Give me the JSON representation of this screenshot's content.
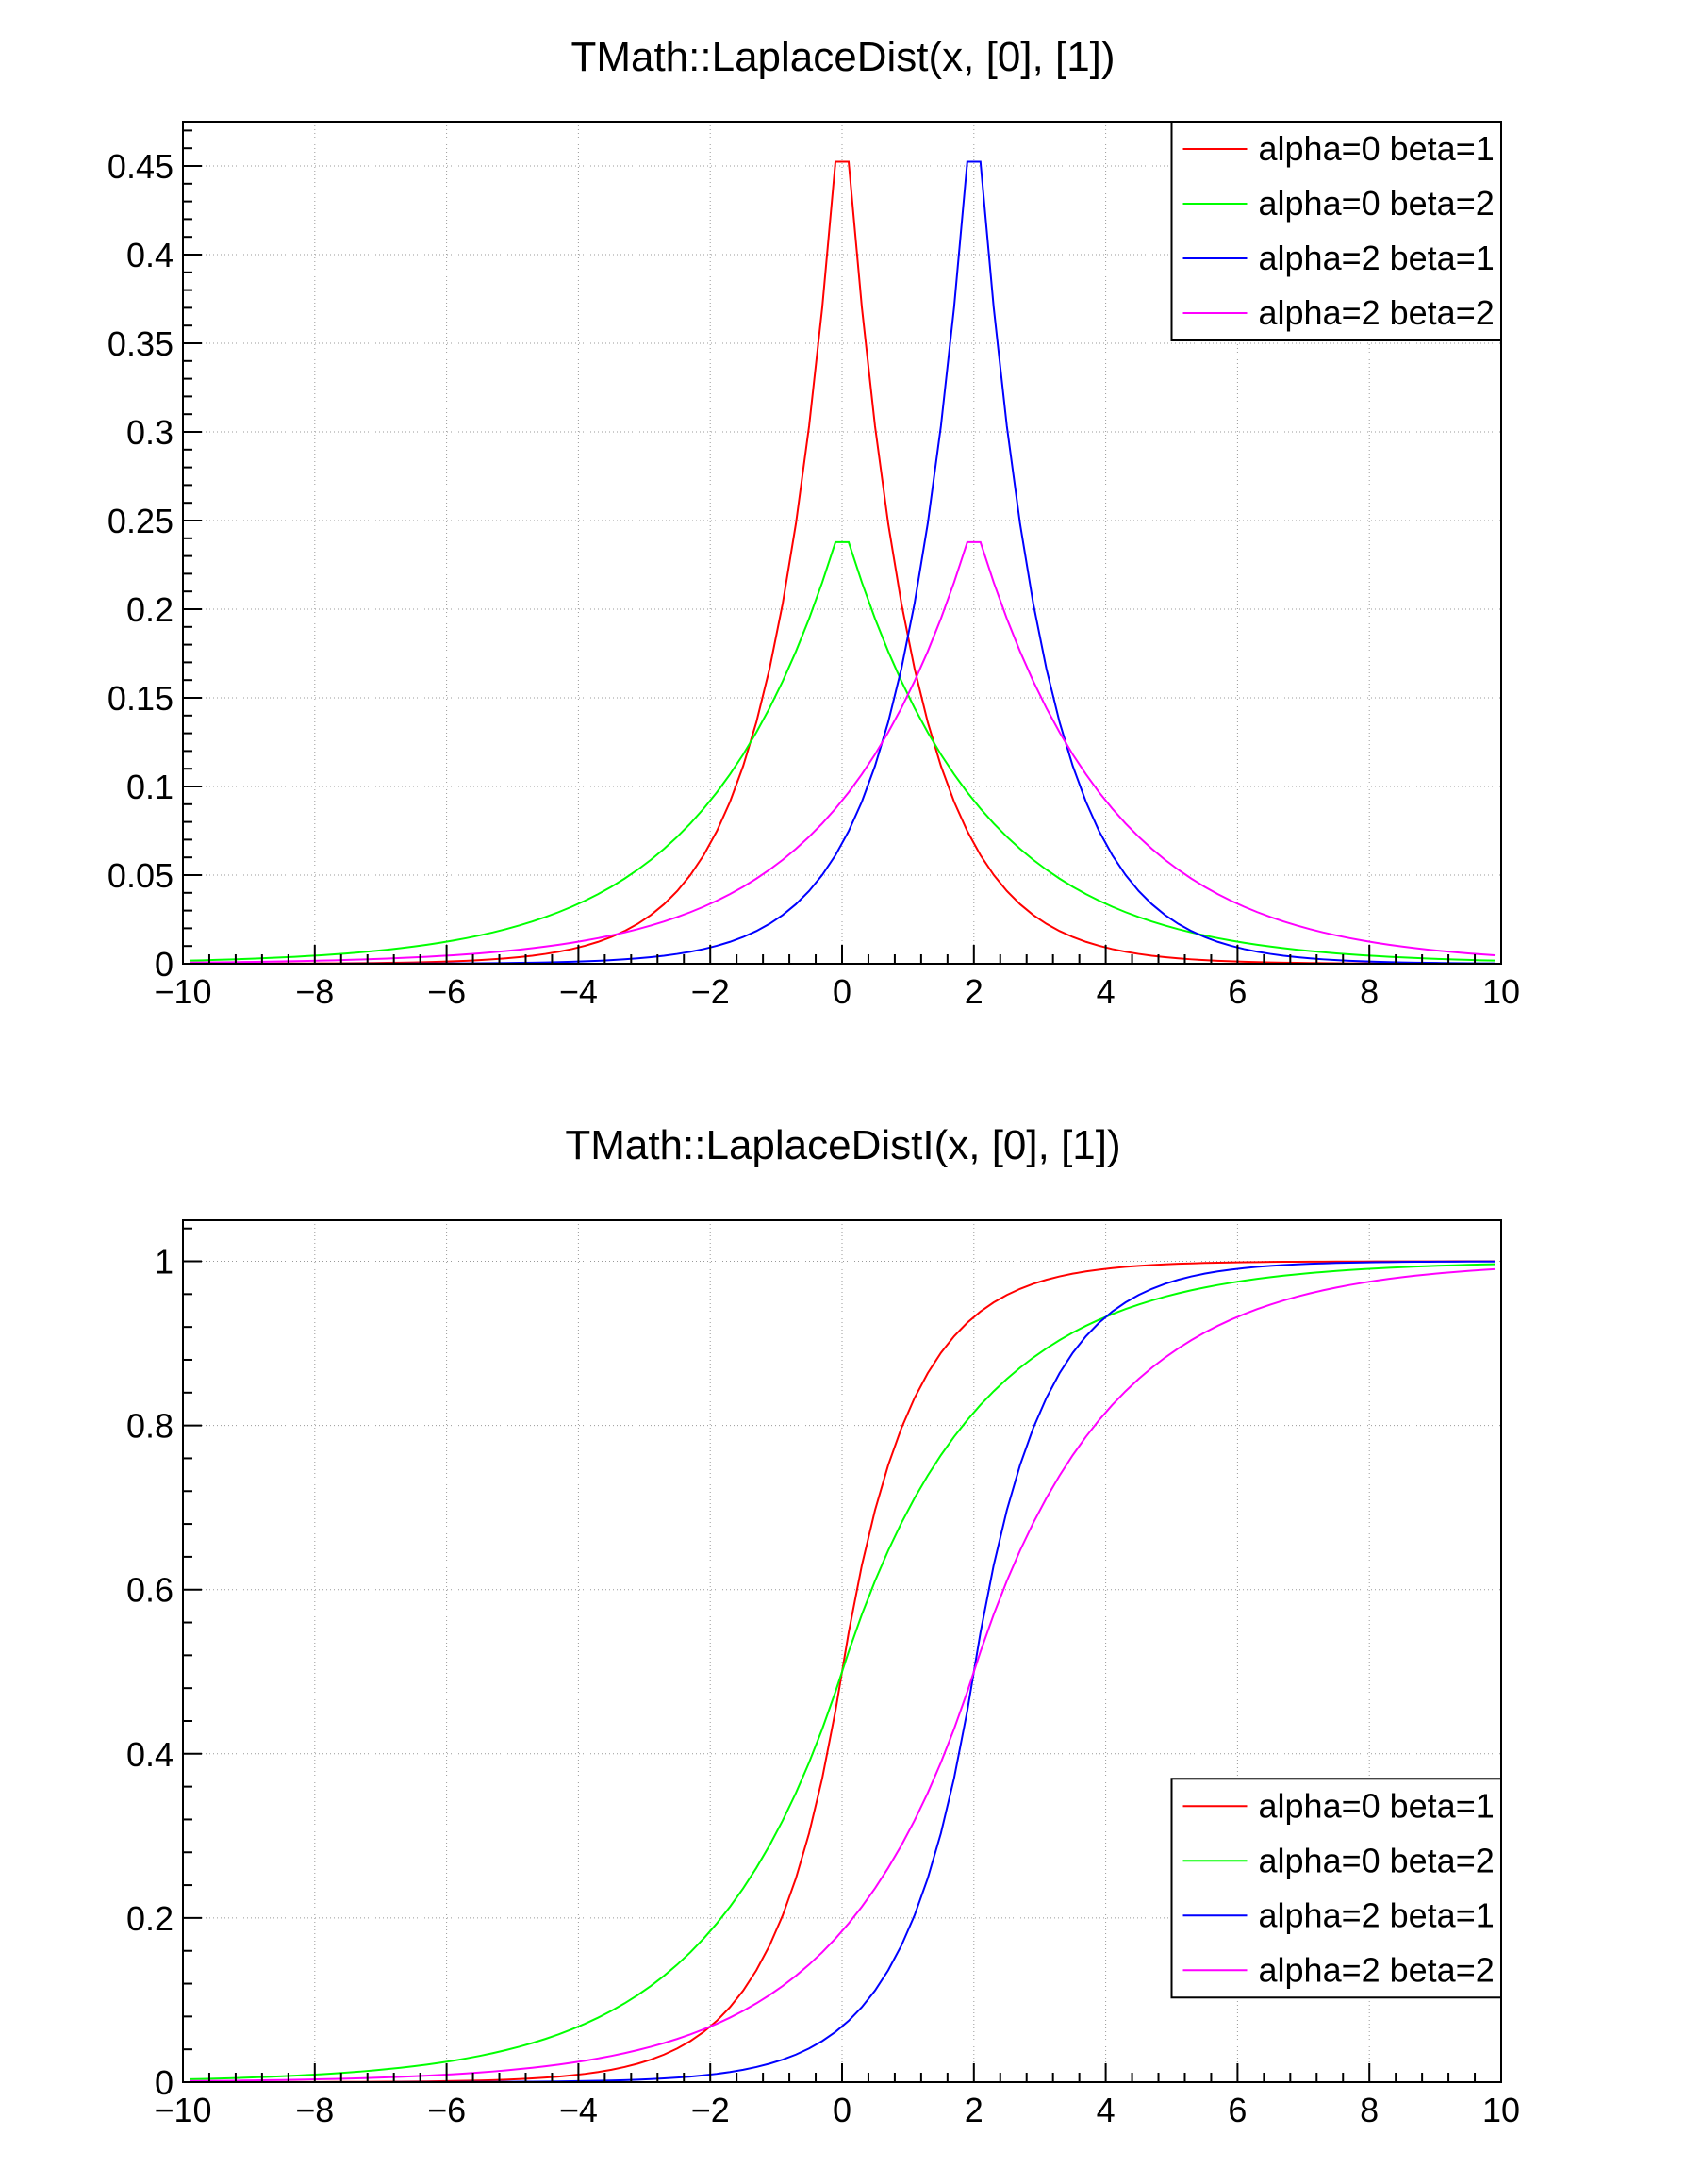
{
  "canvas": {
    "background": "#ffffff",
    "frame_color": "#000000",
    "grid_color": "#999999",
    "text_color": "#000000"
  },
  "chart_data": [
    {
      "type": "line",
      "title": "TMath::LaplaceDist(x, [0], [1])",
      "xlabel": "",
      "ylabel": "",
      "xlim": [
        -10,
        10
      ],
      "ylim": [
        0,
        0.475
      ],
      "xticks": [
        -10,
        -8,
        -6,
        -4,
        -2,
        0,
        2,
        4,
        6,
        8,
        10
      ],
      "xtick_labels": [
        "−10",
        "−8",
        "−6",
        "−4",
        "−2",
        "0",
        "2",
        "4",
        "6",
        "8",
        "10"
      ],
      "yticks": [
        0,
        0.05,
        0.1,
        0.15,
        0.2,
        0.25,
        0.3,
        0.35,
        0.4,
        0.45
      ],
      "ytick_labels": [
        "0",
        "0.05",
        "0.1",
        "0.15",
        "0.2",
        "0.25",
        "0.3",
        "0.35",
        "0.4",
        "0.45"
      ],
      "x_minor_step": 0.4,
      "y_minor_step": 0.01,
      "grid": true,
      "function": "laplace_pdf",
      "sampling": {
        "start": -9.9,
        "step": 0.2,
        "count": 100
      },
      "legend": {
        "position": "top-right"
      },
      "series": [
        {
          "name": "alpha=0 beta=1",
          "color": "#ff0000",
          "alpha": 0,
          "beta": 1,
          "peak_x": 0,
          "peak_y": 0.4524
        },
        {
          "name": "alpha=0 beta=2",
          "color": "#00ff00",
          "alpha": 0,
          "beta": 2,
          "peak_x": 0,
          "peak_y": 0.2378
        },
        {
          "name": "alpha=2 beta=1",
          "color": "#0000ff",
          "alpha": 2,
          "beta": 1,
          "peak_x": 2,
          "peak_y": 0.4524
        },
        {
          "name": "alpha=2 beta=2",
          "color": "#ff00ff",
          "alpha": 2,
          "beta": 2,
          "peak_x": 2,
          "peak_y": 0.2378
        }
      ]
    },
    {
      "type": "line",
      "title": "TMath::LaplaceDistI(x, [0], [1])",
      "xlabel": "",
      "ylabel": "",
      "xlim": [
        -10,
        10
      ],
      "ylim": [
        0,
        1.05
      ],
      "xticks": [
        -10,
        -8,
        -6,
        -4,
        -2,
        0,
        2,
        4,
        6,
        8,
        10
      ],
      "xtick_labels": [
        "−10",
        "−8",
        "−6",
        "−4",
        "−2",
        "0",
        "2",
        "4",
        "6",
        "8",
        "10"
      ],
      "yticks": [
        0,
        0.2,
        0.4,
        0.6,
        0.8,
        1
      ],
      "ytick_labels": [
        "0",
        "0.2",
        "0.4",
        "0.6",
        "0.8",
        "1"
      ],
      "x_minor_step": 0.4,
      "y_minor_step": 0.04,
      "grid": true,
      "function": "laplace_cdf",
      "sampling": {
        "start": -9.9,
        "step": 0.2,
        "count": 100
      },
      "legend": {
        "position": "bottom-right"
      },
      "series": [
        {
          "name": "alpha=0 beta=1",
          "color": "#ff0000",
          "alpha": 0,
          "beta": 1,
          "midpoint_x": 0,
          "midpoint_y": 0.5
        },
        {
          "name": "alpha=0 beta=2",
          "color": "#00ff00",
          "alpha": 0,
          "beta": 2,
          "midpoint_x": 0,
          "midpoint_y": 0.5
        },
        {
          "name": "alpha=2 beta=1",
          "color": "#0000ff",
          "alpha": 2,
          "beta": 1,
          "midpoint_x": 2,
          "midpoint_y": 0.5
        },
        {
          "name": "alpha=2 beta=2",
          "color": "#ff00ff",
          "alpha": 2,
          "beta": 2,
          "midpoint_x": 2,
          "midpoint_y": 0.5
        }
      ]
    }
  ]
}
